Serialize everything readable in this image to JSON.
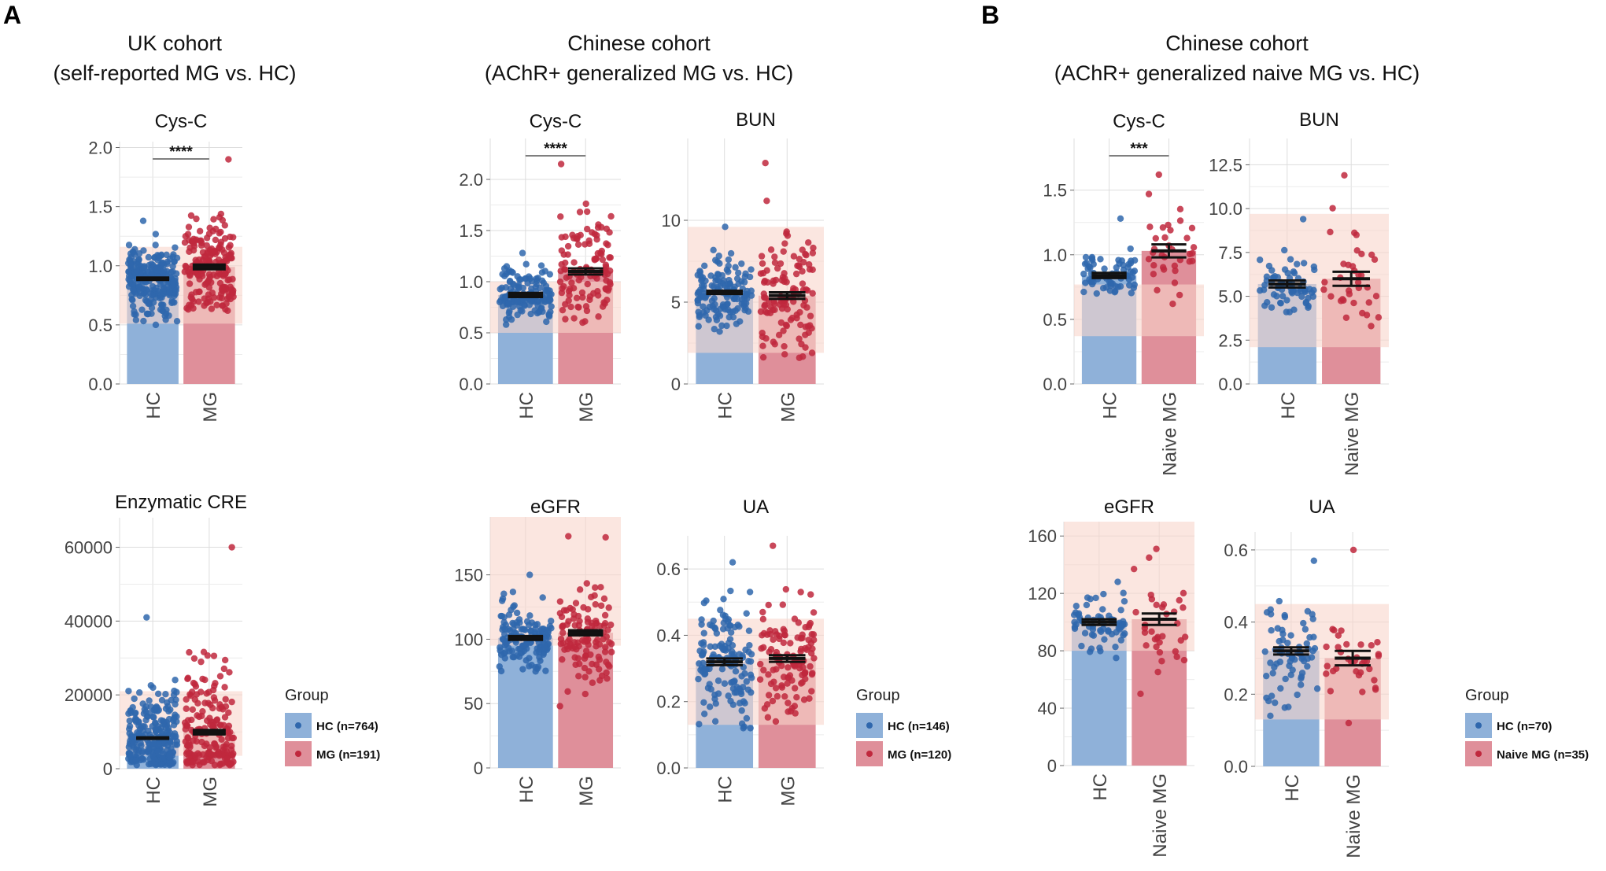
{
  "panels": {
    "a": "A",
    "b": "B"
  },
  "cohort_titles": [
    {
      "line1": "UK cohort",
      "line2": "(self-reported MG vs. HC)"
    },
    {
      "line1": "Chinese cohort",
      "line2": "(AChR+ generalized MG vs. HC)"
    },
    {
      "line1": "Chinese cohort",
      "line2": "(AChR+ generalized naive MG vs. HC)"
    }
  ],
  "legends": [
    {
      "title": "Group",
      "items": [
        "HC (n=764)",
        "MG (n=191)"
      ]
    },
    {
      "title": "Group",
      "items": [
        "HC (n=146)",
        "MG (n=120)"
      ]
    },
    {
      "title": "Group",
      "items": [
        "HC (n=70)",
        "Naive MG (n=35)"
      ]
    }
  ],
  "colors": {
    "hc_bar": "#8fb1d9",
    "mg_bar": "#df8f9a",
    "hc_point": "#2f67ad",
    "mg_point": "#c0283d",
    "ref_band": "#f9d5cb",
    "grid": "#dddddd",
    "error": "#111111"
  },
  "chart_data": [
    {
      "type": "bar",
      "title": "Cys-C",
      "categories": [
        "HC",
        "MG"
      ],
      "values": [
        0.89,
        0.99
      ],
      "sem": [
        0.01,
        0.02
      ],
      "ylim": [
        0,
        2.05
      ],
      "ticks": [
        0.0,
        0.5,
        1.0,
        1.5,
        2.0
      ],
      "tick_labels": [
        "0.0",
        "0.5",
        "1.0",
        "1.5",
        "2.0"
      ],
      "ref_range": [
        0.51,
        1.16
      ],
      "significance": "****",
      "n": [
        764,
        191
      ],
      "spread": [
        [
          0.5,
          1.38
        ],
        [
          0.62,
          1.9
        ]
      ]
    },
    {
      "type": "bar",
      "title": "Enzymatic CRE",
      "categories": [
        "HC",
        "MG"
      ],
      "values": [
        8300,
        9900
      ],
      "sem": [
        200,
        600
      ],
      "ylim": [
        0,
        68000
      ],
      "ticks": [
        0,
        20000,
        40000,
        60000
      ],
      "tick_labels": [
        "0",
        "20000",
        "40000",
        "60000"
      ],
      "ref_range": [
        3500,
        21000
      ],
      "significance": "",
      "n": [
        764,
        191
      ],
      "spread": [
        [
          1000,
          41000
        ],
        [
          1000,
          60000
        ]
      ]
    },
    {
      "type": "bar",
      "title": "Cys-C",
      "categories": [
        "HC",
        "MG"
      ],
      "values": [
        0.87,
        1.1
      ],
      "sem": [
        0.02,
        0.03
      ],
      "ylim": [
        0,
        2.4
      ],
      "ticks": [
        0.0,
        0.5,
        1.0,
        1.5,
        2.0
      ],
      "tick_labels": [
        "0.0",
        "0.5",
        "1.0",
        "1.5",
        "2.0"
      ],
      "ref_range": [
        0.5,
        1.0
      ],
      "significance": "****",
      "n": [
        146,
        120
      ],
      "spread": [
        [
          0.58,
          1.28
        ],
        [
          0.6,
          2.15
        ]
      ]
    },
    {
      "type": "bar",
      "title": "BUN",
      "categories": [
        "HC",
        "MG"
      ],
      "values": [
        5.6,
        5.4
      ],
      "sem": [
        0.1,
        0.2
      ],
      "ylim": [
        0,
        15
      ],
      "ticks": [
        0,
        5,
        10
      ],
      "tick_labels": [
        "0",
        "5",
        "10"
      ],
      "ref_range": [
        1.9,
        9.6
      ],
      "significance": "",
      "n": [
        146,
        120
      ],
      "spread": [
        [
          3.2,
          9.6
        ],
        [
          1.6,
          13.5
        ]
      ]
    },
    {
      "type": "bar",
      "title": "eGFR",
      "categories": [
        "HC",
        "MG"
      ],
      "values": [
        101,
        105
      ],
      "sem": [
        1.5,
        2
      ],
      "ylim": [
        0,
        195
      ],
      "ticks": [
        0,
        50,
        100,
        150
      ],
      "tick_labels": [
        "0",
        "50",
        "100",
        "150"
      ],
      "ref_range": [
        95,
        195
      ],
      "significance": "",
      "n": [
        146,
        120
      ],
      "spread": [
        [
          75,
          150
        ],
        [
          48,
          180
        ]
      ]
    },
    {
      "type": "bar",
      "title": "UA",
      "categories": [
        "HC",
        "MG"
      ],
      "values": [
        0.32,
        0.33
      ],
      "sem": [
        0.01,
        0.01
      ],
      "ylim": [
        0,
        0.7
      ],
      "ticks": [
        0.0,
        0.2,
        0.4,
        0.6
      ],
      "tick_labels": [
        "0.0",
        "0.2",
        "0.4",
        "0.6"
      ],
      "ref_range": [
        0.13,
        0.45
      ],
      "significance": "",
      "n": [
        146,
        120
      ],
      "spread": [
        [
          0.12,
          0.62
        ],
        [
          0.14,
          0.67
        ]
      ]
    },
    {
      "type": "bar",
      "title": "Cys-C",
      "categories": [
        "HC",
        "Naive MG"
      ],
      "values": [
        0.84,
        1.03
      ],
      "sem": [
        0.02,
        0.05
      ],
      "ylim": [
        0,
        1.9
      ],
      "ticks": [
        0.0,
        0.5,
        1.0,
        1.5
      ],
      "tick_labels": [
        "0.0",
        "0.5",
        "1.0",
        "1.5"
      ],
      "ref_range": [
        0.37,
        0.77
      ],
      "significance": "***",
      "n": [
        70,
        35
      ],
      "spread": [
        [
          0.7,
          1.28
        ],
        [
          0.62,
          1.62
        ]
      ]
    },
    {
      "type": "bar",
      "title": "BUN",
      "categories": [
        "HC",
        "Naive MG"
      ],
      "values": [
        5.7,
        6.0
      ],
      "sem": [
        0.2,
        0.4
      ],
      "ylim": [
        0,
        14
      ],
      "ticks": [
        0.0,
        2.5,
        5.0,
        7.5,
        10.0,
        12.5
      ],
      "tick_labels": [
        "0.0",
        "2.5",
        "5.0",
        "7.5",
        "10.0",
        "12.5"
      ],
      "ref_range": [
        2.1,
        9.7
      ],
      "significance": "",
      "n": [
        70,
        35
      ],
      "spread": [
        [
          4.1,
          9.4
        ],
        [
          3.3,
          11.9
        ]
      ]
    },
    {
      "type": "bar",
      "title": "eGFR",
      "categories": [
        "HC",
        "Naive MG"
      ],
      "values": [
        100,
        102
      ],
      "sem": [
        2,
        4
      ],
      "ylim": [
        0,
        170
      ],
      "ticks": [
        0,
        40,
        80,
        120,
        160
      ],
      "tick_labels": [
        "0",
        "40",
        "80",
        "120",
        "160"
      ],
      "ref_range": [
        80,
        170
      ],
      "significance": "",
      "n": [
        70,
        35
      ],
      "spread": [
        [
          75,
          128
        ],
        [
          50,
          151
        ]
      ]
    },
    {
      "type": "bar",
      "title": "UA",
      "categories": [
        "HC",
        "Naive MG"
      ],
      "values": [
        0.32,
        0.3
      ],
      "sem": [
        0.01,
        0.02
      ],
      "ylim": [
        0,
        0.65
      ],
      "ticks": [
        0.0,
        0.2,
        0.4,
        0.6
      ],
      "tick_labels": [
        "0.0",
        "0.2",
        "0.4",
        "0.6"
      ],
      "ref_range": [
        0.13,
        0.45
      ],
      "significance": "",
      "n": [
        70,
        35
      ],
      "spread": [
        [
          0.14,
          0.57
        ],
        [
          0.12,
          0.6
        ]
      ]
    }
  ]
}
